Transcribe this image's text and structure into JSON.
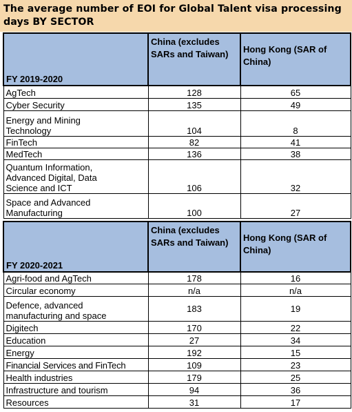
{
  "title": "The average number of EOI for Global Talent visa processing days BY SECTOR",
  "columns": {
    "china": "China (excludes SARs and Taiwan)",
    "hongkong": "Hong Kong (SAR of China)"
  },
  "table1": {
    "fy": "FY 2019-2020",
    "rows": [
      {
        "sector": "AgTech",
        "china": "128",
        "hk": "65"
      },
      {
        "sector": "Cyber Security",
        "china": "135",
        "hk": "49"
      },
      {
        "sector": "Energy and Mining Technology",
        "china": "104",
        "hk": "8"
      },
      {
        "sector": "FinTech",
        "china": "82",
        "hk": "41"
      },
      {
        "sector": "MedTech",
        "china": "136",
        "hk": "38"
      },
      {
        "sector": "Quantum Information, Advanced Digital, Data Science and ICT",
        "china": "106",
        "hk": "32"
      },
      {
        "sector": "Space and Advanced Manufacturing",
        "china": "100",
        "hk": "27"
      }
    ]
  },
  "table2": {
    "fy": "FY 2020-2021",
    "rows": [
      {
        "sector": "Agri-food and AgTech",
        "china": "178",
        "hk": "16"
      },
      {
        "sector": "Circular economy",
        "china": "n/a",
        "hk": "n/a"
      },
      {
        "sector": "Defence, advanced manufacturing and space",
        "china": "183",
        "hk": "19"
      },
      {
        "sector": "Digitech",
        "china": "170",
        "hk": "22"
      },
      {
        "sector": "Education",
        "china": "27",
        "hk": "34"
      },
      {
        "sector": "Energy",
        "china": "192",
        "hk": "15"
      },
      {
        "sector": "Financial Services and FinTech",
        "china": "109",
        "hk": "23"
      },
      {
        "sector": "Health industries",
        "china": "179",
        "hk": "25"
      },
      {
        "sector": "Infrastructure and tourism",
        "china": "94",
        "hk": "36"
      },
      {
        "sector": "Resources",
        "china": "31",
        "hk": "17"
      }
    ]
  }
}
